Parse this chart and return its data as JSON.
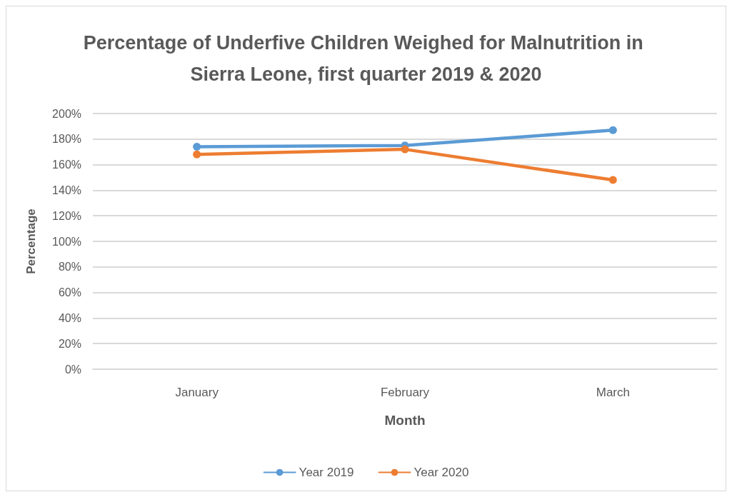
{
  "chart_data": {
    "type": "line",
    "title": "Percentage of Underfive Children Weighed for Malnutrition in Sierra Leone, first quarter 2019 & 2020",
    "xlabel": "Month",
    "ylabel": "Percentage",
    "categories": [
      "January",
      "February",
      "March"
    ],
    "series": [
      {
        "name": "Year 2019",
        "color": "#5b9bd5",
        "values": [
          174,
          175,
          187
        ]
      },
      {
        "name": "Year 2020",
        "color": "#ed7d31",
        "values": [
          168,
          172,
          148
        ]
      }
    ],
    "ylim": [
      0,
      200
    ],
    "yticks": [
      {
        "value": 0,
        "label": "0%"
      },
      {
        "value": 20,
        "label": "20%"
      },
      {
        "value": 40,
        "label": "40%"
      },
      {
        "value": 60,
        "label": "60%"
      },
      {
        "value": 80,
        "label": "80%"
      },
      {
        "value": 100,
        "label": "100%"
      },
      {
        "value": 120,
        "label": "120%"
      },
      {
        "value": 140,
        "label": "140%"
      },
      {
        "value": 160,
        "label": "160%"
      },
      {
        "value": 180,
        "label": "180%"
      },
      {
        "value": 200,
        "label": "200%"
      }
    ],
    "grid": "y",
    "legend": "bottom",
    "marker": "circle",
    "line_style": "solid"
  }
}
